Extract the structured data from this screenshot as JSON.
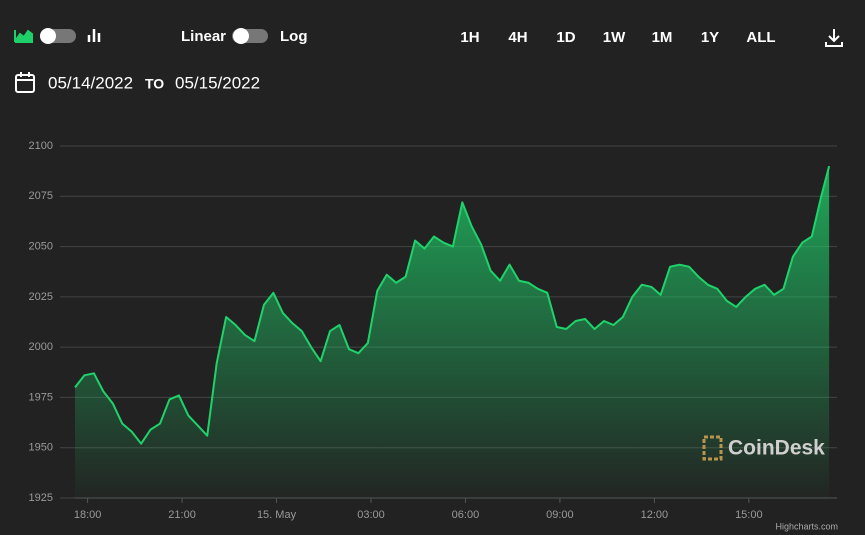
{
  "toolbar": {
    "scale_left": "Linear",
    "scale_right": "Log",
    "ranges": [
      "1H",
      "4H",
      "1D",
      "1W",
      "1M",
      "1Y",
      "ALL"
    ],
    "active_range": 2,
    "accent": "#1fcf6a"
  },
  "date_range": {
    "from": "05/14/2022",
    "to_word": "TO",
    "to": "05/15/2022"
  },
  "watermark": "CoinDesk",
  "credit": "Highcharts.com",
  "chart_data": {
    "type": "area",
    "x": [
      17.6,
      17.9,
      18.2,
      18.5,
      18.8,
      19.1,
      19.4,
      19.7,
      20.0,
      20.3,
      20.6,
      20.9,
      21.2,
      21.5,
      21.8,
      22.1,
      22.4,
      22.7,
      23.0,
      23.3,
      23.6,
      23.9,
      24.2,
      24.5,
      24.8,
      25.1,
      25.4,
      25.7,
      26.0,
      26.3,
      26.6,
      26.9,
      27.2,
      27.5,
      27.8,
      28.1,
      28.4,
      28.7,
      29.0,
      29.3,
      29.6,
      29.9,
      30.2,
      30.5,
      30.8,
      31.1,
      31.4,
      31.7,
      32.0,
      32.3,
      32.6,
      32.9,
      33.2,
      33.5,
      33.8,
      34.1,
      34.4,
      34.7,
      35.0,
      35.3,
      35.6,
      35.9,
      36.2,
      36.5,
      36.8,
      37.1,
      37.4,
      37.7,
      38.0,
      38.3,
      38.6,
      38.9,
      39.2,
      39.5,
      39.8,
      40.1,
      40.4,
      40.7,
      41.0,
      41.3,
      41.55
    ],
    "series": [
      {
        "color": "#1fd36b",
        "values": [
          1980,
          1986,
          1987,
          1978,
          1972,
          1962,
          1958,
          1952,
          1959,
          1962,
          1974,
          1976,
          1966,
          1961,
          1956,
          1992,
          2015,
          2011,
          2006,
          2003,
          2021,
          2027,
          2017,
          2012,
          2008,
          2000,
          1993,
          2008,
          2011,
          1999,
          1997,
          2002,
          2028,
          2036,
          2032,
          2035,
          2053,
          2049,
          2055,
          2052,
          2050,
          2072,
          2060,
          2051,
          2038,
          2033,
          2041,
          2033,
          2032,
          2029,
          2027,
          2010,
          2009,
          2013,
          2014,
          2009,
          2013,
          2011,
          2015,
          2025,
          2031,
          2030,
          2026,
          2040,
          2041,
          2040,
          2035,
          2031,
          2029,
          2023,
          2020,
          2025,
          2029,
          2031,
          2026,
          2029,
          2045,
          2052,
          2055,
          2075,
          2090
        ]
      }
    ],
    "xlim": [
      17.6,
      41.8
    ],
    "xticks": [
      {
        "value": 18,
        "label": "18:00"
      },
      {
        "value": 21,
        "label": "21:00"
      },
      {
        "value": 24,
        "label": "15. May"
      },
      {
        "value": 27,
        "label": "03:00"
      },
      {
        "value": 30,
        "label": "06:00"
      },
      {
        "value": 33,
        "label": "09:00"
      },
      {
        "value": 36,
        "label": "12:00"
      },
      {
        "value": 39,
        "label": "15:00"
      }
    ],
    "ylim": [
      1925,
      2100
    ],
    "yticks": [
      1925,
      1950,
      1975,
      2000,
      2025,
      2050,
      2075,
      2100
    ],
    "grid": true
  }
}
